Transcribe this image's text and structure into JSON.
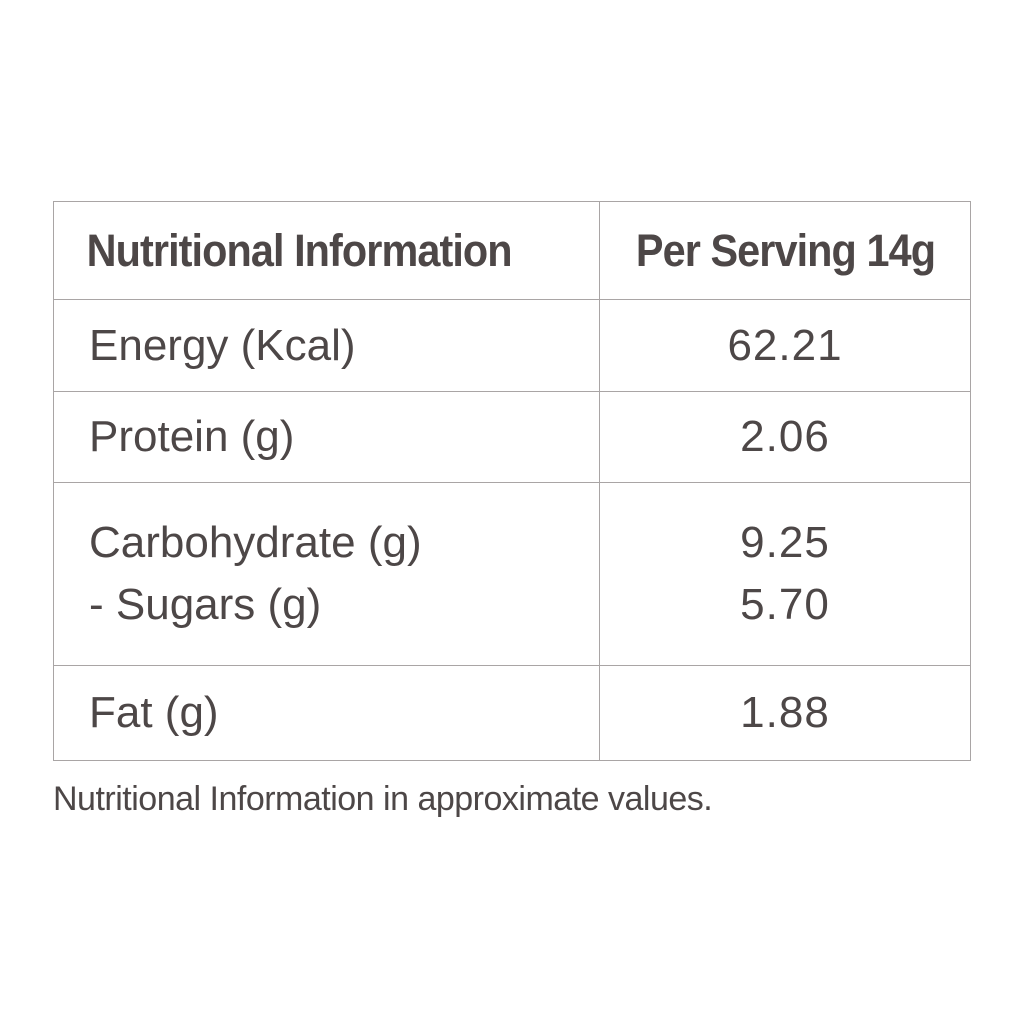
{
  "table": {
    "header": {
      "label": "Nutritional Information",
      "value": "Per Serving 14g"
    },
    "rows": [
      {
        "label": "Energy (Kcal)",
        "value": "62.21"
      },
      {
        "label": "Protein (g)",
        "value": "2.06"
      },
      {
        "label": "Carbohydrate (g)",
        "value": "9.25",
        "sub_label": "- Sugars (g)",
        "sub_value": "5.70"
      },
      {
        "label": "Fat (g)",
        "value": "1.88"
      }
    ]
  },
  "footnote": "Nutritional Information in approximate values.",
  "colors": {
    "text": "#4d4747",
    "border": "#a9a5a5",
    "background": "#ffffff"
  }
}
